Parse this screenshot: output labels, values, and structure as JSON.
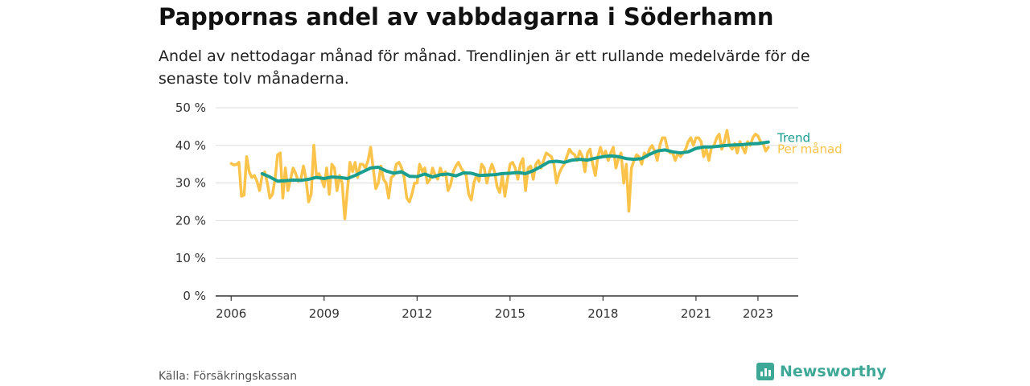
{
  "header": {
    "title": "Pappornas andel av vabbdagarna i Söderhamn",
    "subtitle": "Andel av nettodagar månad för månad. Trendlinjen är ett rullande medelvärde för de senaste tolv månaderna."
  },
  "footer": {
    "source": "Källa: Försäkringskassan",
    "brand": "Newsworthy"
  },
  "colors": {
    "trend": "#1a9e8f",
    "monthly": "#fbc34a",
    "grid": "#dddddd",
    "axis": "#333333",
    "brand": "#3ea896"
  },
  "chart_data": {
    "type": "line",
    "title": "Pappornas andel av vabbdagarna i Söderhamn",
    "xlabel": "",
    "ylabel": "",
    "ylim": [
      0,
      50
    ],
    "y_ticks": [
      0,
      10,
      20,
      30,
      40,
      50
    ],
    "y_tick_labels": [
      "0 %",
      "10 %",
      "20 %",
      "30 %",
      "40 %",
      "50 %"
    ],
    "x_ticks": [
      2006,
      2009,
      2012,
      2015,
      2018,
      2021,
      2023
    ],
    "x_tick_labels": [
      "2006",
      "2009",
      "2012",
      "2015",
      "2018",
      "2021",
      "2023"
    ],
    "grid": true,
    "legend": "right-end labels",
    "x_unit": "decimal year",
    "series": [
      {
        "name": "Per månad",
        "x": [
          2006.0,
          2006.083,
          2006.167,
          2006.25,
          2006.333,
          2006.417,
          2006.5,
          2006.583,
          2006.667,
          2006.75,
          2006.833,
          2006.917,
          2007.0,
          2007.083,
          2007.167,
          2007.25,
          2007.333,
          2007.417,
          2007.5,
          2007.583,
          2007.667,
          2007.75,
          2007.833,
          2007.917,
          2008.0,
          2008.083,
          2008.167,
          2008.25,
          2008.333,
          2008.417,
          2008.5,
          2008.583,
          2008.667,
          2008.75,
          2008.833,
          2008.917,
          2009.0,
          2009.083,
          2009.167,
          2009.25,
          2009.333,
          2009.417,
          2009.5,
          2009.583,
          2009.667,
          2009.75,
          2009.833,
          2009.917,
          2010.0,
          2010.083,
          2010.167,
          2010.25,
          2010.333,
          2010.417,
          2010.5,
          2010.583,
          2010.667,
          2010.75,
          2010.833,
          2010.917,
          2011.0,
          2011.083,
          2011.167,
          2011.25,
          2011.333,
          2011.417,
          2011.5,
          2011.583,
          2011.667,
          2011.75,
          2011.833,
          2011.917,
          2012.0,
          2012.083,
          2012.167,
          2012.25,
          2012.333,
          2012.417,
          2012.5,
          2012.583,
          2012.667,
          2012.75,
          2012.833,
          2012.917,
          2013.0,
          2013.083,
          2013.167,
          2013.25,
          2013.333,
          2013.417,
          2013.5,
          2013.583,
          2013.667,
          2013.75,
          2013.833,
          2013.917,
          2014.0,
          2014.083,
          2014.167,
          2014.25,
          2014.333,
          2014.417,
          2014.5,
          2014.583,
          2014.667,
          2014.75,
          2014.833,
          2014.917,
          2015.0,
          2015.083,
          2015.167,
          2015.25,
          2015.333,
          2015.417,
          2015.5,
          2015.583,
          2015.667,
          2015.75,
          2015.833,
          2015.917,
          2016.0,
          2016.083,
          2016.167,
          2016.25,
          2016.333,
          2016.417,
          2016.5,
          2016.583,
          2016.667,
          2016.75,
          2016.833,
          2016.917,
          2017.0,
          2017.083,
          2017.167,
          2017.25,
          2017.333,
          2017.417,
          2017.5,
          2017.583,
          2017.667,
          2017.75,
          2017.833,
          2017.917,
          2018.0,
          2018.083,
          2018.167,
          2018.25,
          2018.333,
          2018.417,
          2018.5,
          2018.583,
          2018.667,
          2018.75,
          2018.833,
          2018.917,
          2019.0,
          2019.083,
          2019.167,
          2019.25,
          2019.333,
          2019.417,
          2019.5,
          2019.583,
          2019.667,
          2019.75,
          2019.833,
          2019.917,
          2020.0,
          2020.083,
          2020.167,
          2020.25,
          2020.333,
          2020.417,
          2020.5,
          2020.583,
          2020.667,
          2020.75,
          2020.833,
          2020.917,
          2021.0,
          2021.083,
          2021.167,
          2021.25,
          2021.333,
          2021.417,
          2021.5,
          2021.583,
          2021.667,
          2021.75,
          2021.833,
          2021.917,
          2022.0,
          2022.083,
          2022.167,
          2022.25,
          2022.333,
          2022.417,
          2022.5,
          2022.583,
          2022.667,
          2022.75,
          2022.833,
          2022.917,
          2023.0,
          2023.083,
          2023.167,
          2023.25,
          2023.333
        ],
        "values": [
          35.2,
          34.8,
          34.9,
          35.5,
          26.5,
          26.8,
          37.0,
          33.0,
          31.5,
          32.0,
          30.5,
          28.0,
          32.0,
          33.0,
          30.0,
          26.0,
          27.0,
          31.0,
          37.5,
          38.0,
          26.0,
          34.0,
          28.0,
          31.0,
          34.0,
          32.5,
          30.5,
          31.0,
          34.5,
          31.0,
          25.0,
          27.0,
          40.0,
          32.0,
          32.5,
          31.0,
          29.0,
          34.0,
          27.0,
          35.0,
          34.0,
          28.0,
          32.0,
          30.0,
          20.5,
          28.0,
          35.5,
          33.0,
          35.5,
          31.5,
          35.0,
          35.0,
          34.0,
          36.0,
          39.5,
          34.0,
          28.5,
          30.0,
          34.5,
          31.0,
          30.0,
          26.0,
          31.5,
          32.0,
          35.0,
          35.5,
          34.0,
          31.5,
          26.0,
          25.0,
          27.0,
          30.0,
          30.0,
          35.0,
          33.0,
          34.0,
          30.0,
          31.0,
          34.0,
          32.0,
          31.0,
          34.0,
          32.0,
          33.0,
          28.0,
          29.5,
          33.0,
          34.5,
          35.5,
          34.0,
          33.0,
          32.0,
          27.0,
          25.5,
          30.0,
          32.0,
          30.5,
          35.0,
          34.0,
          30.0,
          33.0,
          35.0,
          33.0,
          29.0,
          27.5,
          32.0,
          26.5,
          31.0,
          35.0,
          35.5,
          34.0,
          31.0,
          35.0,
          36.5,
          28.0,
          34.0,
          34.5,
          31.0,
          35.0,
          36.0,
          34.0,
          36.0,
          38.0,
          37.5,
          37.0,
          35.0,
          30.0,
          32.5,
          34.0,
          35.0,
          37.0,
          39.0,
          38.0,
          37.5,
          36.0,
          38.5,
          37.0,
          33.0,
          38.0,
          39.0,
          35.0,
          32.0,
          37.0,
          39.5,
          37.0,
          38.5,
          36.0,
          38.0,
          39.5,
          34.0,
          36.5,
          38.0,
          30.0,
          35.0,
          22.5,
          34.0,
          36.0,
          37.5,
          37.0,
          35.0,
          38.0,
          37.0,
          39.0,
          40.0,
          38.5,
          36.0,
          40.0,
          42.0,
          42.0,
          39.0,
          38.0,
          38.0,
          36.0,
          38.0,
          37.0,
          38.0,
          39.0,
          41.0,
          42.0,
          40.0,
          42.0,
          42.0,
          41.0,
          37.0,
          39.0,
          36.0,
          39.5,
          40.0,
          42.0,
          43.0,
          39.0,
          41.0,
          44.0,
          40.0,
          39.0,
          40.5,
          38.0,
          41.0,
          39.5,
          38.0,
          41.0,
          40.0,
          42.0,
          43.0,
          42.5,
          41.0,
          40.5,
          38.5,
          39.5
        ]
      },
      {
        "name": "Trend",
        "x": [
          2007.0,
          2007.25,
          2007.5,
          2007.75,
          2008.0,
          2008.25,
          2008.5,
          2008.75,
          2009.0,
          2009.25,
          2009.5,
          2009.75,
          2010.0,
          2010.25,
          2010.5,
          2010.75,
          2011.0,
          2011.25,
          2011.5,
          2011.75,
          2012.0,
          2012.25,
          2012.5,
          2012.75,
          2013.0,
          2013.25,
          2013.5,
          2013.75,
          2014.0,
          2014.25,
          2014.5,
          2014.75,
          2015.0,
          2015.25,
          2015.5,
          2015.75,
          2016.0,
          2016.25,
          2016.5,
          2016.75,
          2017.0,
          2017.25,
          2017.5,
          2017.75,
          2018.0,
          2018.25,
          2018.5,
          2018.75,
          2019.0,
          2019.25,
          2019.5,
          2019.75,
          2020.0,
          2020.25,
          2020.5,
          2020.75,
          2021.0,
          2021.25,
          2021.5,
          2021.75,
          2022.0,
          2022.25,
          2022.5,
          2022.75,
          2023.0,
          2023.25,
          2023.333
        ],
        "values": [
          32.5,
          31.6,
          30.5,
          30.6,
          30.8,
          30.7,
          31.0,
          31.5,
          31.2,
          31.6,
          31.5,
          31.2,
          32.0,
          33.0,
          34.0,
          34.2,
          33.2,
          32.6,
          33.0,
          31.8,
          31.7,
          32.4,
          31.6,
          32.2,
          32.4,
          31.9,
          32.7,
          32.6,
          32.0,
          32.1,
          32.2,
          32.5,
          32.6,
          32.8,
          32.5,
          33.3,
          34.4,
          35.6,
          35.8,
          35.5,
          36.1,
          36.3,
          36.1,
          36.6,
          37.0,
          37.2,
          37.0,
          36.5,
          36.3,
          36.5,
          37.6,
          38.5,
          38.8,
          38.3,
          38.0,
          38.3,
          39.2,
          39.6,
          39.6,
          39.8,
          40.0,
          40.1,
          40.2,
          40.4,
          40.5,
          40.8,
          40.9
        ]
      }
    ]
  }
}
